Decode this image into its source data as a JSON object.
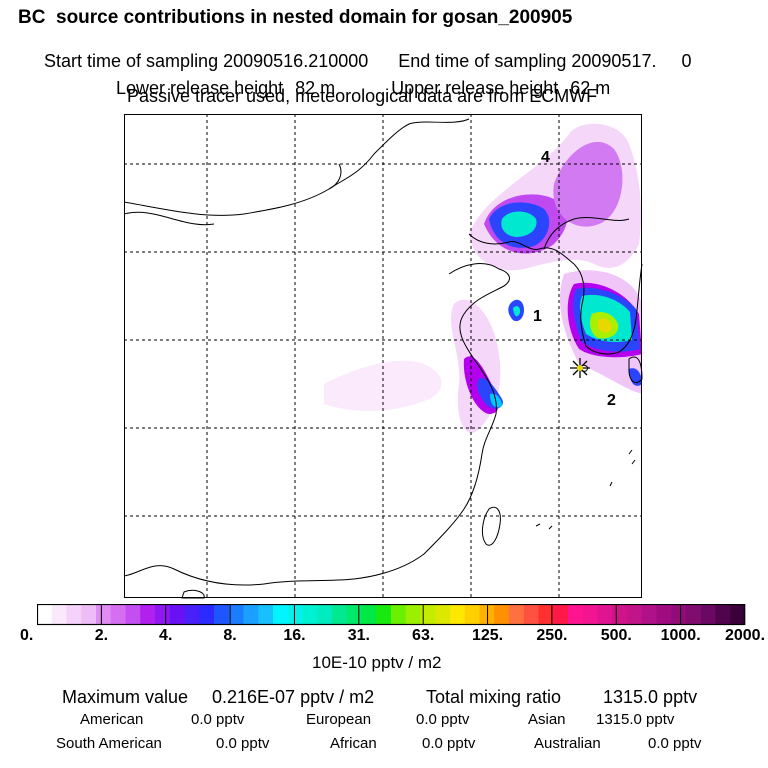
{
  "header": {
    "title": "BC  source contributions in nested domain for gosan_200905",
    "start_label": "Start time of sampling",
    "start_value": "20090516.210000",
    "end_label": "End time of sampling",
    "end_value": "20090517.     0",
    "lower_label": "Lower release height",
    "lower_value": "82 m",
    "upper_label": "Upper release height",
    "upper_value": "62 m",
    "tracer_note": "Passive tracer used, meteorological data are from ECMWF"
  },
  "map": {
    "markers": [
      {
        "label": "4"
      },
      {
        "label": "1"
      },
      {
        "label": "2"
      }
    ],
    "receptor_symbol": "star-marker",
    "plume_colors": [
      "#f5d7fa",
      "#df7ff2",
      "#b400ee",
      "#2b45ff",
      "#00c9ff",
      "#00e8d0",
      "#a8f000",
      "#e6d800"
    ]
  },
  "colorbar": {
    "unit_label": "10E-10 pptv / m2",
    "tick_labels": [
      "0.",
      "2.",
      "4.",
      "8.",
      "16.",
      "31.",
      "63.",
      "125.",
      "250.",
      "500.",
      "1000.",
      "2000."
    ],
    "colors": [
      "#ffffff",
      "#fbe8fd",
      "#f4d2f9",
      "#eebcf7",
      "#df8cf3",
      "#d56ef0",
      "#c34ff0",
      "#b120ee",
      "#8e18f2",
      "#6a10f5",
      "#4a20f8",
      "#2b2bff",
      "#1f55ff",
      "#1a7dff",
      "#1aa0ff",
      "#18c0ff",
      "#00f5ff",
      "#00f2ea",
      "#00f0d4",
      "#00ecbe",
      "#00e890",
      "#00e86a",
      "#00e844",
      "#18ea10",
      "#6af000",
      "#9af000",
      "#c4ec00",
      "#dce800",
      "#ffe800",
      "#ffd000",
      "#ffb000",
      "#ff9000",
      "#ff7040",
      "#ff5040",
      "#ff3030",
      "#ff1848",
      "#ff1490",
      "#f21490",
      "#e01490",
      "#d01488",
      "#c01488",
      "#b01088",
      "#a00c80",
      "#900c78",
      "#800c70",
      "#6a0864",
      "#50044e",
      "#3a003a"
    ]
  },
  "footer": {
    "max_label": "Maximum value",
    "max_value": "0.216E-07 pptv / m2",
    "total_label": "Total mixing ratio",
    "total_value": "1315.0 pptv",
    "regions": [
      {
        "name": "American",
        "value": "0.0 pptv"
      },
      {
        "name": "European",
        "value": "0.0 pptv"
      },
      {
        "name": "Asian",
        "value": "1315.0 pptv"
      },
      {
        "name": "South American",
        "value": "0.0 pptv"
      },
      {
        "name": "African",
        "value": "0.0 pptv"
      },
      {
        "name": "Australian",
        "value": "0.0 pptv"
      }
    ]
  }
}
